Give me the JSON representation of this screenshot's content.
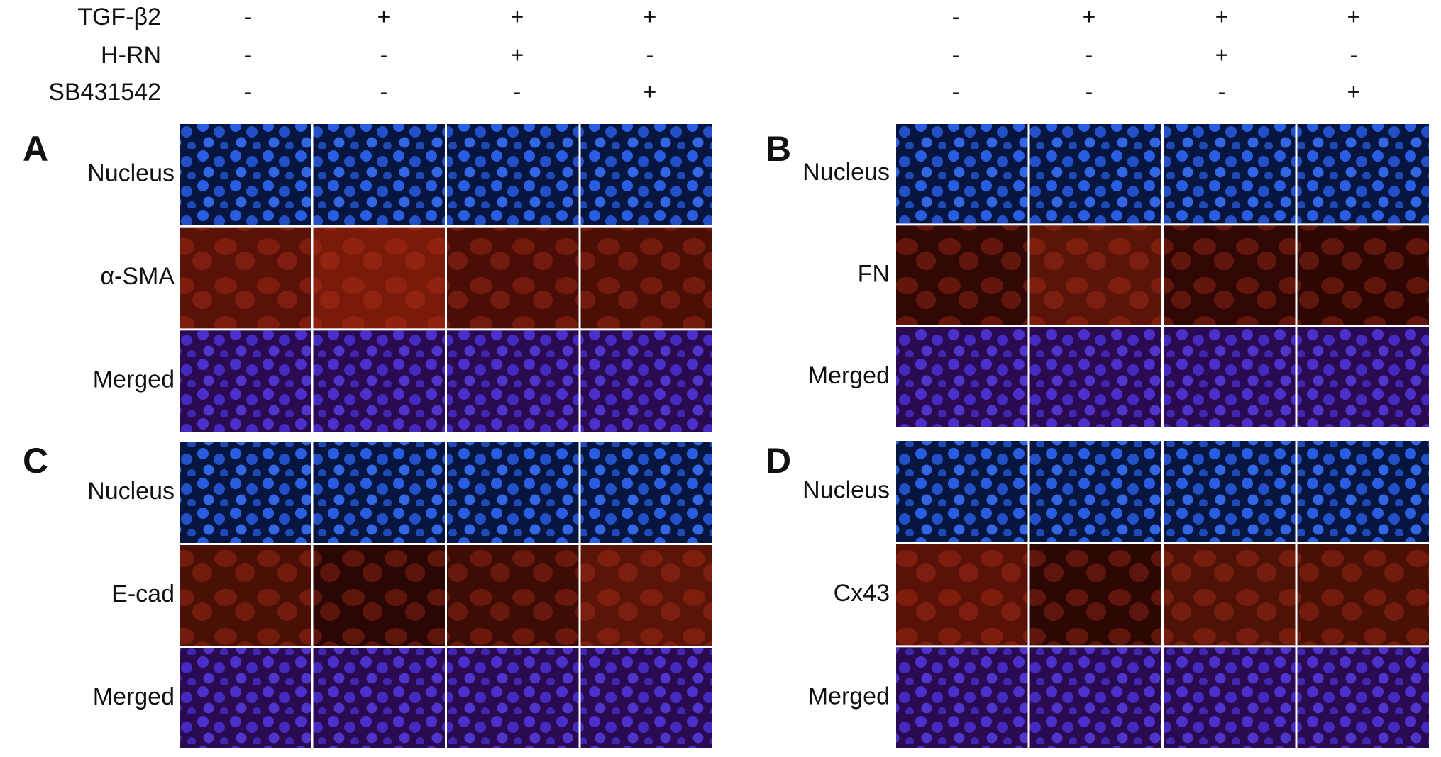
{
  "treatments": [
    {
      "label": "TGF-β2",
      "left": [
        "-",
        "+",
        "+",
        "+"
      ],
      "right": [
        "-",
        "+",
        "+",
        "+"
      ]
    },
    {
      "label": "H-RN",
      "left": [
        "-",
        "-",
        "+",
        "-"
      ],
      "right": [
        "-",
        "-",
        "+",
        "-"
      ]
    },
    {
      "label": "SB431542",
      "left": [
        "-",
        "-",
        "-",
        "+"
      ],
      "right": [
        "-",
        "-",
        "-",
        "+"
      ]
    }
  ],
  "panels": [
    {
      "letter": "A",
      "rows": [
        "Nucleus",
        "α-SMA",
        "Merged"
      ]
    },
    {
      "letter": "B",
      "rows": [
        "Nucleus",
        "FN",
        "Merged"
      ]
    },
    {
      "letter": "C",
      "rows": [
        "Nucleus",
        "E-cad",
        "Merged"
      ]
    },
    {
      "letter": "D",
      "rows": [
        "Nucleus",
        "Cx43",
        "Merged"
      ]
    }
  ]
}
